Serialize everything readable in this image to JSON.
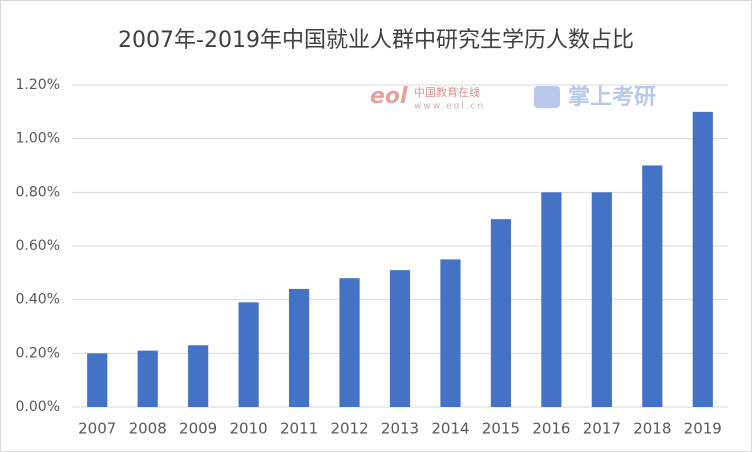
{
  "chart_data": {
    "type": "bar",
    "title": "2007年-2019年中国就业人群中研究生学历人数占比",
    "categories": [
      "2007",
      "2008",
      "2009",
      "2010",
      "2011",
      "2012",
      "2013",
      "2014",
      "2015",
      "2016",
      "2017",
      "2018",
      "2019"
    ],
    "values": [
      0.2,
      0.21,
      0.23,
      0.39,
      0.44,
      0.48,
      0.51,
      0.55,
      0.7,
      0.8,
      0.8,
      0.9,
      1.1
    ],
    "color": "#4472c4",
    "ylim": [
      0,
      1.2
    ],
    "yticks": [
      {
        "value": 0,
        "label": "0.00%"
      },
      {
        "value": 0.2,
        "label": "0.20%"
      },
      {
        "value": 0.4,
        "label": "0.40%"
      },
      {
        "value": 0.6,
        "label": "0.60%"
      },
      {
        "value": 0.8,
        "label": "0.80%"
      },
      {
        "value": 1.0,
        "label": "1.00%"
      },
      {
        "value": 1.2,
        "label": "1.20%"
      }
    ],
    "grid": true,
    "watermarks": [
      "中国教育在线",
      "www.eol.cn",
      "掌上考研"
    ]
  }
}
